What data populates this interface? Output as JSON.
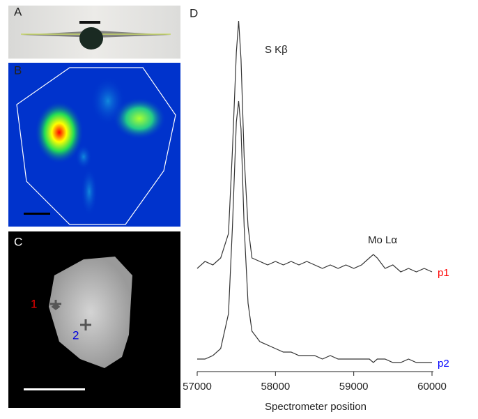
{
  "panels": {
    "a": "A",
    "b": "B",
    "c": "C",
    "d": "D"
  },
  "points": {
    "p1": "1",
    "p2": "2"
  },
  "chart_data": {
    "type": "line",
    "annotations": [
      "S Kβ",
      "Mo Lα"
    ],
    "xlabel": "Spectrometer position",
    "xlim": [
      57000,
      60000
    ],
    "xticks": [
      57000,
      58000,
      59000,
      60000
    ],
    "ylim": [
      0,
      100
    ],
    "x": [
      57000,
      57100,
      57200,
      57300,
      57400,
      57450,
      57500,
      57530,
      57560,
      57600,
      57650,
      57700,
      57800,
      57900,
      58000,
      58100,
      58200,
      58300,
      58400,
      58500,
      58600,
      58700,
      58800,
      58900,
      59000,
      59100,
      59200,
      59250,
      59300,
      59400,
      59500,
      59600,
      59700,
      59800,
      59900,
      60000
    ],
    "series": [
      {
        "name": "p1",
        "color": "#ff0000",
        "line_color": "#333333",
        "values": [
          28,
          30,
          29,
          31,
          38,
          62,
          90,
          99,
          88,
          60,
          40,
          31,
          30,
          29,
          30,
          29,
          30,
          29,
          30,
          29,
          28,
          29,
          28,
          29,
          28,
          29,
          31,
          32,
          31,
          28,
          29,
          27,
          28,
          27,
          28,
          27
        ]
      },
      {
        "name": "p2",
        "color": "#0000ff",
        "line_color": "#333333",
        "values": [
          2,
          2,
          3,
          5,
          15,
          40,
          70,
          76,
          68,
          40,
          18,
          10,
          7,
          6,
          5,
          4,
          4,
          3,
          3,
          3,
          2,
          3,
          2,
          2,
          2,
          2,
          2,
          1,
          2,
          2,
          1,
          1,
          2,
          1,
          1,
          1
        ]
      }
    ]
  }
}
